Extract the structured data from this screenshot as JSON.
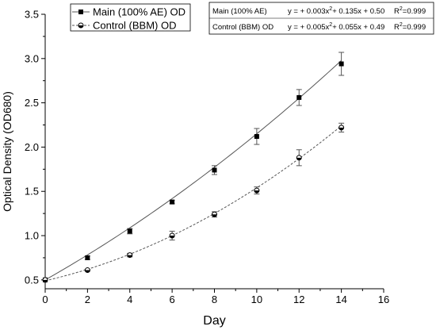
{
  "chart_data": {
    "type": "line",
    "xlabel": "Day",
    "ylabel": "Optical Density (OD680)",
    "xlim": [
      0,
      16
    ],
    "ylim": [
      0.4,
      3.5
    ],
    "xticks": [
      0,
      2,
      4,
      6,
      8,
      10,
      12,
      14,
      16
    ],
    "yticks": [
      0.5,
      1.0,
      1.5,
      2.0,
      2.5,
      3.0,
      3.5
    ],
    "xtick_labels": [
      "0",
      "2",
      "4",
      "6",
      "8",
      "10",
      "12",
      "14",
      "16"
    ],
    "ytick_labels": [
      "0.5",
      "1.0",
      "1.5",
      "2.0",
      "2.5",
      "3.0",
      "3.5"
    ],
    "grid": false,
    "legend_position": "top-left",
    "series": [
      {
        "name": "Main (100% AE) OD",
        "marker": "filled-square",
        "line_style": "solid",
        "color": "#000000",
        "line_color": "#555555",
        "x": [
          0,
          2,
          4,
          6,
          8,
          10,
          12,
          14
        ],
        "values": [
          0.5,
          0.75,
          1.05,
          1.38,
          1.74,
          2.12,
          2.56,
          2.94
        ],
        "error": [
          0.0,
          0.02,
          0.03,
          0.02,
          0.05,
          0.09,
          0.09,
          0.13
        ],
        "fit": {
          "a": 0.003,
          "b": 0.135,
          "c": 0.5
        }
      },
      {
        "name": "Control (BBM) OD",
        "marker": "half-filled-circle",
        "line_style": "dashed",
        "color": "#000000",
        "line_color": "#555555",
        "x": [
          0,
          2,
          4,
          6,
          8,
          10,
          12,
          14
        ],
        "values": [
          0.5,
          0.61,
          0.78,
          1.0,
          1.24,
          1.51,
          1.88,
          2.22
        ],
        "error": [
          0.0,
          0.01,
          0.02,
          0.05,
          0.03,
          0.04,
          0.09,
          0.05
        ],
        "fit": {
          "a": 0.005,
          "b": 0.055,
          "c": 0.49
        }
      }
    ],
    "equation_box": {
      "rows": [
        {
          "name": "Main (100% AE)",
          "eq_prefix": "y = + 0.003x",
          "eq_exp": "2",
          "eq_suffix": "+ 0.135x + 0.50",
          "r2_label": "R",
          "r2_exp": "2",
          "r2_value": "=0.999"
        },
        {
          "name": "Control (BBM) OD",
          "eq_prefix": "y = + 0.005x",
          "eq_exp": "2",
          "eq_suffix": "+ 0.055x + 0.49",
          "r2_label": "R",
          "r2_exp": "2",
          "r2_value": "=0.999"
        }
      ]
    }
  }
}
